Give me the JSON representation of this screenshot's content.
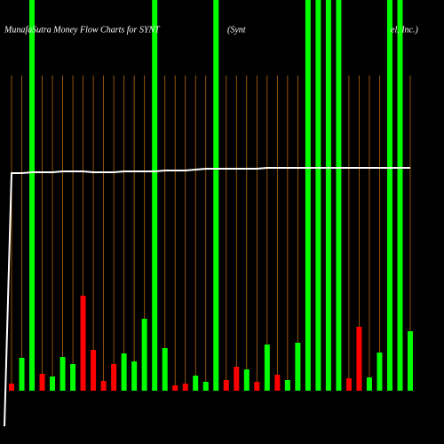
{
  "chart_data": {
    "type": "bar",
    "title": "MunafaSutra  Money Flow  Charts for SYNT",
    "title_parts": [
      "(Synt",
      "el, Inc.)"
    ],
    "values": [
      8,
      37,
      440,
      19,
      16,
      38,
      30,
      107,
      46,
      11,
      30,
      42,
      33,
      81,
      440,
      48,
      6,
      8,
      17,
      10,
      440,
      12,
      27,
      24,
      10,
      52,
      18,
      12,
      54,
      440,
      440,
      440,
      440,
      14,
      72,
      15,
      43,
      440,
      440,
      67
    ],
    "bar_colors": [
      "#ff0000",
      "#00ff00",
      "#00ff00",
      "#ff0000",
      "#00ff00",
      "#00ff00",
      "#00ff00",
      "#ff0000",
      "#ff0000",
      "#ff0000",
      "#ff0000",
      "#00ff00",
      "#00ff00",
      "#00ff00",
      "#00ff00",
      "#00ff00",
      "#ff0000",
      "#ff0000",
      "#00ff00",
      "#00ff00",
      "#00ff00",
      "#ff0000",
      "#ff0000",
      "#00ff00",
      "#ff0000",
      "#00ff00",
      "#ff0000",
      "#00ff00",
      "#00ff00",
      "#00ff00",
      "#00ff00",
      "#00ff00",
      "#00ff00",
      "#ff0000",
      "#ff0000",
      "#00ff00",
      "#00ff00",
      "#00ff00",
      "#00ff00",
      "#00ff00"
    ],
    "line": {
      "color": "#ffffff",
      "values": [
        245,
        245,
        246,
        246,
        246,
        247,
        247,
        247,
        246,
        246,
        246,
        247,
        247,
        247,
        247,
        248,
        248,
        248,
        249,
        250,
        250,
        250,
        250,
        250,
        250,
        251,
        251,
        251,
        251,
        251,
        251,
        251,
        251,
        251,
        251,
        251,
        251,
        251,
        251,
        251
      ]
    },
    "ylim": [
      0,
      440
    ],
    "grid_color": "#b8660b"
  }
}
